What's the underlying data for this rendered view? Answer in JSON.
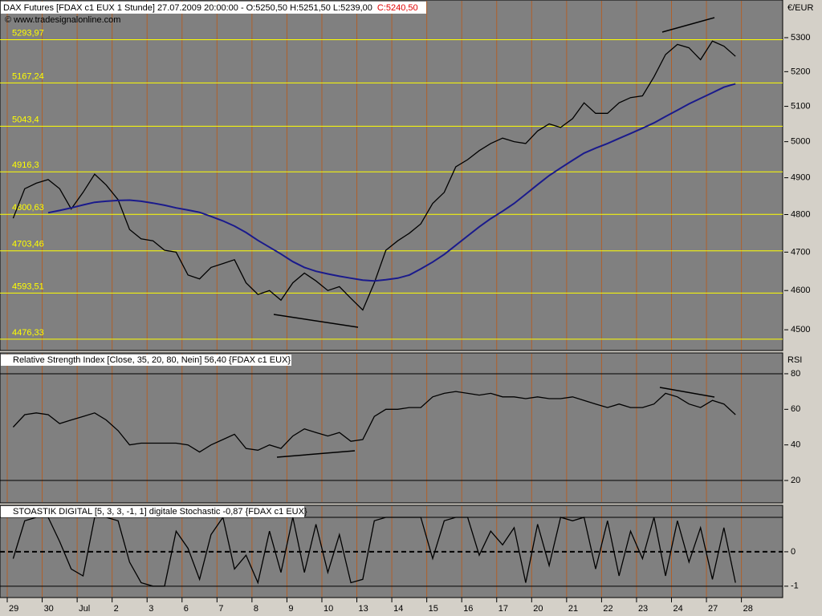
{
  "chart_data": [
    {
      "type": "line",
      "title": "DAX Futures [FDAX c1 EUX  1 Stunde] 27.07.2009 20:00:00 - O:5250,50 H:5251,50 L:5239,00",
      "close_label": "C:5240,50",
      "subtitle": "© www.tradesignalonline.com",
      "axis_label": "€/EUR",
      "log": true,
      "x": [
        0.17,
        0.5,
        0.83,
        1.17,
        1.5,
        1.83,
        2.17,
        2.5,
        2.83,
        3.17,
        3.5,
        3.83,
        4.17,
        4.5,
        4.83,
        5.17,
        5.5,
        5.83,
        6.17,
        6.5,
        6.83,
        7.17,
        7.5,
        7.83,
        8.17,
        8.5,
        8.83,
        9.17,
        9.5,
        9.83,
        10.17,
        10.5,
        10.83,
        11.17,
        11.5,
        11.83,
        12.17,
        12.5,
        12.83,
        13.17,
        13.5,
        13.83,
        14.17,
        14.5,
        14.83,
        15.17,
        15.5,
        15.83,
        16.17,
        16.5,
        16.83,
        17.17,
        17.5,
        17.83,
        18.17,
        18.5,
        18.83,
        19.17,
        19.5,
        19.83,
        20.17,
        20.5,
        20.83
      ],
      "xlim": [
        -0.207,
        22.18
      ],
      "ylim": [
        4448,
        5413
      ],
      "yticks": [
        4500,
        4600,
        4700,
        4800,
        4900,
        5000,
        5100,
        5200,
        5300
      ],
      "levels": [
        {
          "value": 5293.97,
          "label": "5293,97"
        },
        {
          "value": 5167.24,
          "label": "5167,24"
        },
        {
          "value": 5043.4,
          "label": "5043,4"
        },
        {
          "value": 4916.3,
          "label": "4916,3"
        },
        {
          "value": 4800.63,
          "label": "4800,63"
        },
        {
          "value": 4703.46,
          "label": "4703,46"
        },
        {
          "value": 4593.51,
          "label": "4593,51"
        },
        {
          "value": 4476.33,
          "label": "4476,33"
        }
      ],
      "level_color": "#ffff00",
      "series": [
        {
          "color": "#000000",
          "values": [
            4790,
            4870,
            4885,
            4895,
            4870,
            4815,
            4860,
            4910,
            4880,
            4840,
            4760,
            4735,
            4730,
            4705,
            4700,
            4640,
            4630,
            4660,
            4670,
            4680,
            4620,
            4590,
            4600,
            4575,
            4620,
            4645,
            4625,
            4600,
            4610,
            4580,
            4550,
            4620,
            4705,
            4730,
            4750,
            4775,
            4830,
            4860,
            4930,
            4950,
            4975,
            4995,
            5010,
            5000,
            4995,
            5030,
            5050,
            5040,
            5065,
            5110,
            5080,
            5080,
            5110,
            5125,
            5130,
            5185,
            5250,
            5280,
            5270,
            5235,
            5290,
            5275,
            5245
          ]
        },
        {
          "color": "#1a1a8c",
          "values": [
            null,
            null,
            null,
            4805,
            4811,
            4818,
            4826,
            4833,
            4836,
            4838,
            4839,
            4836,
            4831,
            4825,
            4818,
            4812,
            4806,
            4795,
            4783,
            4769,
            4752,
            4731,
            4713,
            4695,
            4675,
            4660,
            4650,
            4643,
            4637,
            4632,
            4627,
            4625,
            4628,
            4632,
            4640,
            4656,
            4674,
            4694,
            4718,
            4743,
            4767,
            4789,
            4809,
            4830,
            4855,
            4881,
            4906,
            4927,
            4948,
            4968,
            4982,
            4995,
            5009,
            5023,
            5038,
            5053,
            5071,
            5089,
            5107,
            5123,
            5139,
            5155,
            5165
          ]
        }
      ]
    },
    {
      "type": "line",
      "title": "Relative Strength Index [Close, 35, 20, 80, Nein] 56,40 {FDAX c1 EUX}",
      "axis_label": "RSI",
      "x": [
        0.17,
        0.5,
        0.83,
        1.17,
        1.5,
        1.83,
        2.17,
        2.5,
        2.83,
        3.17,
        3.5,
        3.83,
        4.17,
        4.5,
        4.83,
        5.17,
        5.5,
        5.83,
        6.17,
        6.5,
        6.83,
        7.17,
        7.5,
        7.83,
        8.17,
        8.5,
        8.83,
        9.17,
        9.5,
        9.83,
        10.17,
        10.5,
        10.83,
        11.17,
        11.5,
        11.83,
        12.17,
        12.5,
        12.83,
        13.17,
        13.5,
        13.83,
        14.17,
        14.5,
        14.83,
        15.17,
        15.5,
        15.83,
        16.17,
        16.5,
        16.83,
        17.17,
        17.5,
        17.83,
        18.17,
        18.5,
        18.83,
        19.17,
        19.5,
        19.83,
        20.17,
        20.5,
        20.83
      ],
      "xlim": [
        -0.207,
        22.18
      ],
      "ylim": [
        7.4,
        91.7
      ],
      "yticks": [
        20,
        40,
        60,
        80
      ],
      "hlines": [
        20,
        80
      ],
      "series": [
        {
          "color": "#000000",
          "values": [
            50,
            57,
            58,
            57,
            52,
            54,
            56,
            58,
            54,
            48,
            40,
            41,
            41,
            41,
            41,
            40,
            36,
            40,
            43,
            46,
            38,
            37,
            40,
            38,
            45,
            49,
            47,
            45,
            47,
            42,
            43,
            56,
            60,
            60,
            61,
            61,
            67,
            69,
            70,
            69,
            68,
            69,
            67,
            67,
            66,
            67,
            66,
            66,
            67,
            65,
            63,
            61,
            63,
            61,
            61,
            63,
            69,
            67,
            63,
            61,
            65,
            63,
            57
          ]
        }
      ]
    },
    {
      "type": "line",
      "title": "STOASTIK DIGITAL [5, 3, 3, -1, 1] digitale Stochastic -0,87 {FDAX c1 EUX}",
      "x": [
        0.17,
        0.5,
        0.83,
        1.17,
        1.5,
        1.83,
        2.17,
        2.5,
        2.83,
        3.17,
        3.5,
        3.83,
        4.17,
        4.5,
        4.83,
        5.17,
        5.5,
        5.83,
        6.17,
        6.5,
        6.83,
        7.17,
        7.5,
        7.83,
        8.17,
        8.5,
        8.83,
        9.17,
        9.5,
        9.83,
        10.17,
        10.5,
        10.83,
        11.17,
        11.5,
        11.83,
        12.17,
        12.5,
        12.83,
        13.17,
        13.5,
        13.83,
        14.17,
        14.5,
        14.83,
        15.17,
        15.5,
        15.83,
        16.17,
        16.5,
        16.83,
        17.17,
        17.5,
        17.83,
        18.17,
        18.5,
        18.83,
        19.17,
        19.5,
        19.83,
        20.17,
        20.5,
        20.83
      ],
      "xlim": [
        -0.207,
        22.18
      ],
      "ylim": [
        -1.33,
        1.35
      ],
      "yticks": [
        -1,
        0
      ],
      "hlines": [
        1,
        -1
      ],
      "dashed_hlines": [
        0
      ],
      "xticks": [
        {
          "value": 0,
          "label": "29"
        },
        {
          "value": 1,
          "label": "30"
        },
        {
          "value": 2,
          "label": "Jul"
        },
        {
          "value": 3,
          "label": "2"
        },
        {
          "value": 4,
          "label": "3"
        },
        {
          "value": 5,
          "label": "6"
        },
        {
          "value": 6,
          "label": "7"
        },
        {
          "value": 7,
          "label": "8"
        },
        {
          "value": 8,
          "label": "9"
        },
        {
          "value": 9,
          "label": "10"
        },
        {
          "value": 10,
          "label": "13"
        },
        {
          "value": 11,
          "label": "14"
        },
        {
          "value": 12,
          "label": "15"
        },
        {
          "value": 13,
          "label": "16"
        },
        {
          "value": 14,
          "label": "17"
        },
        {
          "value": 15,
          "label": "20"
        },
        {
          "value": 16,
          "label": "21"
        },
        {
          "value": 17,
          "label": "22"
        },
        {
          "value": 18,
          "label": "23"
        },
        {
          "value": 19,
          "label": "24"
        },
        {
          "value": 20,
          "label": "27"
        },
        {
          "value": 21,
          "label": "28"
        }
      ],
      "separator_color": "#b0602a",
      "series": [
        {
          "color": "#000000",
          "values": [
            -0.2,
            0.9,
            1,
            1,
            0.3,
            -0.5,
            -0.7,
            1,
            1,
            0.9,
            -0.3,
            -0.9,
            -1,
            -1,
            0.6,
            0.1,
            -0.8,
            0.5,
            1,
            -0.5,
            -0.1,
            -0.9,
            0.6,
            -0.6,
            1,
            -0.6,
            0.8,
            -0.6,
            0.5,
            -0.9,
            -0.8,
            0.9,
            1,
            1,
            1,
            1,
            -0.2,
            0.9,
            1,
            1,
            -0.1,
            0.6,
            0.2,
            0.7,
            -0.9,
            0.8,
            -0.4,
            1,
            0.9,
            1,
            -0.5,
            0.9,
            -0.7,
            0.6,
            -0.2,
            1,
            -0.7,
            0.9,
            -0.3,
            0.7,
            -0.8,
            0.7,
            -0.9
          ]
        }
      ]
    }
  ]
}
